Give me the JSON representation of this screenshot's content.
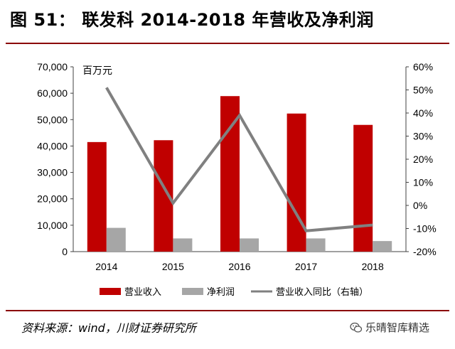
{
  "header": {
    "title": "图 51：  联发科 2014-2018 年营收及净利润"
  },
  "footer": {
    "source": "资料来源：wind，川财证券研究所"
  },
  "watermark": {
    "text": "乐晴智库精选",
    "icon": "wechat-icon"
  },
  "colors": {
    "revenue": "#c00000",
    "net_profit": "#a6a6a6",
    "yoy": "#808080",
    "rule": "#8b0000"
  },
  "chart_data": {
    "type": "bar",
    "categories": [
      "2014",
      "2015",
      "2016",
      "2017",
      "2018"
    ],
    "unit_label": "百万元",
    "series": [
      {
        "name": "营业收入",
        "type": "bar",
        "axis": "left",
        "values": [
          41500,
          42200,
          58900,
          52300,
          48000
        ]
      },
      {
        "name": "净利润",
        "type": "bar",
        "axis": "left",
        "values": [
          9000,
          5000,
          5000,
          5000,
          4000
        ]
      },
      {
        "name": "营业收入同比（右轴）",
        "type": "line",
        "axis": "right",
        "values": [
          51,
          1,
          39,
          -11,
          -8.5
        ]
      }
    ],
    "left_axis": {
      "min": 0,
      "max": 70000,
      "ticks": [
        "0",
        "10,000",
        "20,000",
        "30,000",
        "40,000",
        "50,000",
        "60,000",
        "70,000"
      ]
    },
    "right_axis": {
      "min": -20,
      "max": 60,
      "ticks": [
        "-20%",
        "-10%",
        "0%",
        "10%",
        "20%",
        "30%",
        "40%",
        "50%",
        "60%"
      ]
    },
    "legend": {
      "position": "bottom"
    },
    "grid": false
  }
}
